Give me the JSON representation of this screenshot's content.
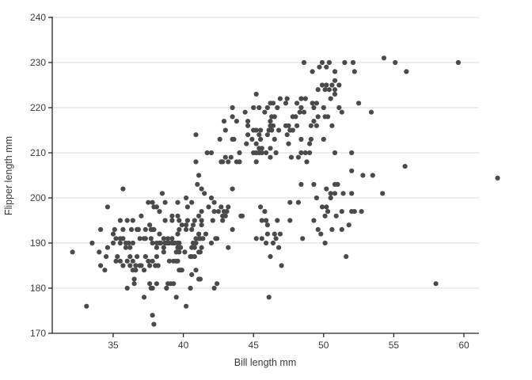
{
  "chart_data": {
    "type": "scatter",
    "title": "",
    "xlabel": "Bill length mm",
    "ylabel": "Flipper length mm",
    "xlim": [
      30.6,
      61.1
    ],
    "ylim": [
      170,
      240
    ],
    "x_ticks": [
      35,
      40,
      45,
      50,
      55,
      60
    ],
    "y_ticks": [
      170,
      180,
      190,
      200,
      210,
      220,
      230,
      240
    ],
    "grid": "horizontal-only",
    "legend": "none",
    "points": [
      [
        37.9,
        172
      ],
      [
        37.8,
        174
      ],
      [
        33.1,
        176
      ],
      [
        40.2,
        176
      ],
      [
        37.2,
        178
      ],
      [
        39.5,
        178
      ],
      [
        46.1,
        178
      ],
      [
        36.0,
        180
      ],
      [
        37.7,
        180
      ],
      [
        37.8,
        180
      ],
      [
        38.8,
        180
      ],
      [
        40.5,
        180
      ],
      [
        42.2,
        180
      ],
      [
        36.5,
        181
      ],
      [
        37.6,
        181
      ],
      [
        38.1,
        181
      ],
      [
        38.9,
        181
      ],
      [
        39.1,
        181
      ],
      [
        39.3,
        181
      ],
      [
        42.4,
        181
      ],
      [
        58.0,
        181
      ],
      [
        36.5,
        182
      ],
      [
        41.1,
        182
      ],
      [
        41.2,
        182
      ],
      [
        40.6,
        183
      ],
      [
        34.4,
        184
      ],
      [
        36.4,
        184
      ],
      [
        36.6,
        184
      ],
      [
        37.2,
        184
      ],
      [
        39.7,
        184
      ],
      [
        39.8,
        184
      ],
      [
        39.9,
        184
      ],
      [
        40.9,
        184
      ],
      [
        34.1,
        185
      ],
      [
        35.7,
        185
      ],
      [
        36.2,
        185
      ],
      [
        36.6,
        185
      ],
      [
        36.9,
        185
      ],
      [
        37.0,
        185
      ],
      [
        37.6,
        185
      ],
      [
        38.0,
        185
      ],
      [
        38.2,
        185
      ],
      [
        47.0,
        185
      ],
      [
        35.2,
        186
      ],
      [
        35.5,
        186
      ],
      [
        36.0,
        186
      ],
      [
        36.4,
        186
      ],
      [
        37.5,
        186
      ],
      [
        37.8,
        186
      ],
      [
        39.0,
        186
      ],
      [
        39.3,
        186
      ],
      [
        39.5,
        186
      ],
      [
        39.6,
        186
      ],
      [
        34.5,
        187
      ],
      [
        35.3,
        187
      ],
      [
        36.2,
        187
      ],
      [
        36.7,
        187
      ],
      [
        37.3,
        187
      ],
      [
        38.1,
        187
      ],
      [
        40.5,
        187
      ],
      [
        40.6,
        187
      ],
      [
        40.8,
        187
      ],
      [
        46.2,
        187
      ],
      [
        51.6,
        187
      ],
      [
        32.1,
        188
      ],
      [
        34.0,
        188
      ],
      [
        38.6,
        188
      ],
      [
        39.5,
        188
      ],
      [
        39.7,
        188
      ],
      [
        40.1,
        188
      ],
      [
        41.1,
        188
      ],
      [
        41.2,
        188
      ],
      [
        34.6,
        189
      ],
      [
        35.9,
        189
      ],
      [
        36.2,
        189
      ],
      [
        38.1,
        189
      ],
      [
        38.6,
        189
      ],
      [
        39.6,
        189
      ],
      [
        39.8,
        189
      ],
      [
        40.6,
        189
      ],
      [
        40.8,
        189
      ],
      [
        41.3,
        189
      ],
      [
        43.2,
        189
      ],
      [
        46.8,
        189
      ],
      [
        33.5,
        190
      ],
      [
        35.0,
        190
      ],
      [
        35.5,
        190
      ],
      [
        35.9,
        190
      ],
      [
        36.1,
        190
      ],
      [
        36.4,
        190
      ],
      [
        37.8,
        190
      ],
      [
        38.1,
        190
      ],
      [
        38.3,
        190
      ],
      [
        38.4,
        190
      ],
      [
        38.7,
        190
      ],
      [
        38.8,
        190
      ],
      [
        38.9,
        190
      ],
      [
        39.0,
        190
      ],
      [
        39.2,
        190
      ],
      [
        39.3,
        190
      ],
      [
        39.4,
        190
      ],
      [
        39.6,
        190
      ],
      [
        39.7,
        190
      ],
      [
        40.7,
        190
      ],
      [
        40.9,
        190
      ],
      [
        42.0,
        190
      ],
      [
        45.9,
        190
      ],
      [
        46.4,
        190
      ],
      [
        50.1,
        190
      ],
      [
        35.2,
        191
      ],
      [
        35.5,
        191
      ],
      [
        35.7,
        191
      ],
      [
        36.9,
        191
      ],
      [
        37.2,
        191
      ],
      [
        37.3,
        191
      ],
      [
        37.7,
        191
      ],
      [
        38.6,
        191
      ],
      [
        38.9,
        191
      ],
      [
        39.2,
        191
      ],
      [
        40.9,
        191
      ],
      [
        41.1,
        191
      ],
      [
        41.2,
        191
      ],
      [
        41.4,
        191
      ],
      [
        42.3,
        191
      ],
      [
        42.4,
        191
      ],
      [
        45.2,
        191
      ],
      [
        45.6,
        191
      ],
      [
        46.6,
        191
      ],
      [
        48.5,
        191
      ],
      [
        35.0,
        192
      ],
      [
        38.3,
        192
      ],
      [
        39.6,
        192
      ],
      [
        41.1,
        192
      ],
      [
        41.6,
        192
      ],
      [
        46.0,
        192
      ],
      [
        46.5,
        192
      ],
      [
        46.9,
        192
      ],
      [
        49.8,
        192
      ],
      [
        34.1,
        193
      ],
      [
        35.1,
        193
      ],
      [
        35.7,
        193
      ],
      [
        36.3,
        193
      ],
      [
        36.7,
        193
      ],
      [
        36.8,
        193
      ],
      [
        37.3,
        193
      ],
      [
        37.7,
        193
      ],
      [
        37.8,
        193
      ],
      [
        37.9,
        193
      ],
      [
        39.7,
        193
      ],
      [
        40.2,
        193
      ],
      [
        40.6,
        193
      ],
      [
        43.5,
        193
      ],
      [
        49.6,
        193
      ],
      [
        50.6,
        193
      ],
      [
        51.3,
        193
      ],
      [
        37.6,
        194
      ],
      [
        39.9,
        194
      ],
      [
        40.2,
        194
      ],
      [
        40.7,
        194
      ],
      [
        41.3,
        194
      ],
      [
        46.0,
        194
      ],
      [
        51.8,
        194
      ],
      [
        35.5,
        195
      ],
      [
        36.0,
        195
      ],
      [
        36.4,
        195
      ],
      [
        38.7,
        195
      ],
      [
        39.2,
        195
      ],
      [
        39.7,
        195
      ],
      [
        40.3,
        195
      ],
      [
        40.8,
        195
      ],
      [
        41.3,
        195
      ],
      [
        42.1,
        195
      ],
      [
        42.8,
        195
      ],
      [
        45.6,
        195
      ],
      [
        45.9,
        195
      ],
      [
        46.7,
        195
      ],
      [
        47.6,
        195
      ],
      [
        49.3,
        195
      ],
      [
        37.0,
        196
      ],
      [
        39.2,
        196
      ],
      [
        39.6,
        196
      ],
      [
        41.1,
        196
      ],
      [
        42.8,
        196
      ],
      [
        43.0,
        196
      ],
      [
        44.1,
        196
      ],
      [
        44.2,
        196
      ],
      [
        50.1,
        196
      ],
      [
        50.9,
        196
      ],
      [
        38.3,
        197
      ],
      [
        41.3,
        197
      ],
      [
        42.2,
        197
      ],
      [
        42.5,
        197
      ],
      [
        42.9,
        197
      ],
      [
        43.1,
        197
      ],
      [
        45.8,
        197
      ],
      [
        50.3,
        197
      ],
      [
        51.3,
        197
      ],
      [
        52.0,
        197
      ],
      [
        52.2,
        197
      ],
      [
        52.7,
        197
      ],
      [
        34.6,
        198
      ],
      [
        37.9,
        198
      ],
      [
        38.1,
        198
      ],
      [
        40.3,
        198
      ],
      [
        41.8,
        198
      ],
      [
        42.7,
        198
      ],
      [
        43.2,
        198
      ],
      [
        45.5,
        198
      ],
      [
        49.9,
        198
      ],
      [
        50.2,
        198
      ],
      [
        37.5,
        199
      ],
      [
        37.8,
        199
      ],
      [
        38.7,
        199
      ],
      [
        39.6,
        199
      ],
      [
        40.6,
        199
      ],
      [
        42.2,
        199
      ],
      [
        47.6,
        199
      ],
      [
        48.2,
        199
      ],
      [
        40.2,
        200
      ],
      [
        42.0,
        200
      ],
      [
        49.5,
        200
      ],
      [
        50.5,
        200
      ],
      [
        38.5,
        201
      ],
      [
        41.5,
        201
      ],
      [
        50.5,
        201
      ],
      [
        50.8,
        201
      ],
      [
        51.4,
        201
      ],
      [
        52.0,
        201
      ],
      [
        54.2,
        201
      ],
      [
        35.7,
        202
      ],
      [
        41.3,
        202
      ],
      [
        43.5,
        202
      ],
      [
        50.2,
        202
      ],
      [
        41.0,
        203
      ],
      [
        48.4,
        203
      ],
      [
        49.3,
        203
      ],
      [
        50.8,
        203
      ],
      [
        51.0,
        203
      ],
      [
        62.4,
        204.4
      ],
      [
        41.1,
        205
      ],
      [
        52.8,
        205
      ],
      [
        53.5,
        205
      ],
      [
        52.0,
        206
      ],
      [
        55.8,
        207
      ],
      [
        40.9,
        208
      ],
      [
        42.7,
        208
      ],
      [
        42.8,
        208
      ],
      [
        43.2,
        208
      ],
      [
        43.8,
        208
      ],
      [
        44.0,
        208
      ],
      [
        45.2,
        208
      ],
      [
        48.8,
        208
      ],
      [
        43.0,
        209
      ],
      [
        43.4,
        209
      ],
      [
        46.2,
        209
      ],
      [
        47.7,
        209
      ],
      [
        48.2,
        209
      ],
      [
        41.7,
        210
      ],
      [
        42.0,
        210
      ],
      [
        44.0,
        210
      ],
      [
        45.0,
        210
      ],
      [
        45.2,
        210
      ],
      [
        45.4,
        210
      ],
      [
        45.6,
        210
      ],
      [
        45.9,
        210
      ],
      [
        46.6,
        210
      ],
      [
        48.4,
        210
      ],
      [
        48.7,
        210
      ],
      [
        49.0,
        210
      ],
      [
        50.8,
        210
      ],
      [
        52.0,
        210
      ],
      [
        45.4,
        211
      ],
      [
        45.6,
        211
      ],
      [
        46.2,
        211
      ],
      [
        44.5,
        212
      ],
      [
        45.2,
        212
      ],
      [
        47.5,
        212
      ],
      [
        49.0,
        212
      ],
      [
        42.6,
        213
      ],
      [
        43.5,
        213
      ],
      [
        43.6,
        213
      ],
      [
        44.9,
        213
      ],
      [
        45.5,
        213
      ],
      [
        46.5,
        213
      ],
      [
        48.4,
        213
      ],
      [
        49.1,
        213
      ],
      [
        50.0,
        213
      ],
      [
        40.9,
        214
      ],
      [
        44.6,
        214
      ],
      [
        45.4,
        214
      ],
      [
        46.0,
        214
      ],
      [
        47.4,
        214
      ],
      [
        43.0,
        215
      ],
      [
        45.0,
        215
      ],
      [
        45.2,
        215
      ],
      [
        45.5,
        215
      ],
      [
        46.1,
        215
      ],
      [
        46.3,
        215
      ],
      [
        46.8,
        215
      ],
      [
        47.6,
        215
      ],
      [
        47.8,
        215
      ],
      [
        44.6,
        216
      ],
      [
        46.2,
        216
      ],
      [
        46.4,
        216
      ],
      [
        47.3,
        216
      ],
      [
        47.5,
        216
      ],
      [
        48.1,
        216
      ],
      [
        49.1,
        216
      ],
      [
        49.5,
        216
      ],
      [
        50.6,
        216
      ],
      [
        42.9,
        217
      ],
      [
        43.8,
        217
      ],
      [
        44.6,
        217
      ],
      [
        46.2,
        217
      ],
      [
        49.3,
        217
      ],
      [
        43.5,
        218
      ],
      [
        46.3,
        218
      ],
      [
        46.5,
        218
      ],
      [
        47.8,
        218
      ],
      [
        48.0,
        218
      ],
      [
        49.6,
        218
      ],
      [
        50.1,
        218
      ],
      [
        50.3,
        218
      ],
      [
        44.4,
        219
      ],
      [
        45.8,
        219
      ],
      [
        48.3,
        219
      ],
      [
        48.6,
        219
      ],
      [
        51.3,
        219
      ],
      [
        53.4,
        219
      ],
      [
        43.5,
        220
      ],
      [
        45.0,
        220
      ],
      [
        45.4,
        220
      ],
      [
        46.0,
        220
      ],
      [
        46.7,
        220
      ],
      [
        48.4,
        220
      ],
      [
        49.3,
        220
      ],
      [
        50.0,
        220
      ],
      [
        51.1,
        220
      ],
      [
        46.2,
        221
      ],
      [
        46.4,
        221
      ],
      [
        47.3,
        221
      ],
      [
        48.1,
        221
      ],
      [
        49.2,
        221
      ],
      [
        49.5,
        221
      ],
      [
        52.5,
        221
      ],
      [
        46.9,
        222
      ],
      [
        47.4,
        222
      ],
      [
        48.4,
        222
      ],
      [
        48.7,
        222
      ],
      [
        50.5,
        222
      ],
      [
        45.2,
        223
      ],
      [
        50.8,
        223
      ],
      [
        49.6,
        224
      ],
      [
        50.1,
        224
      ],
      [
        50.4,
        224
      ],
      [
        50.8,
        224
      ],
      [
        49.9,
        225
      ],
      [
        50.2,
        225
      ],
      [
        50.6,
        225
      ],
      [
        51.1,
        225
      ],
      [
        50.8,
        226
      ],
      [
        49.2,
        228
      ],
      [
        50.8,
        228
      ],
      [
        52.2,
        228
      ],
      [
        55.9,
        228
      ],
      [
        49.7,
        229
      ],
      [
        50.2,
        229
      ],
      [
        48.6,
        230
      ],
      [
        49.9,
        230
      ],
      [
        50.4,
        230
      ],
      [
        51.5,
        230
      ],
      [
        52.1,
        230
      ],
      [
        55.1,
        230
      ],
      [
        59.6,
        230
      ],
      [
        54.3,
        231
      ]
    ]
  },
  "colors": {
    "background": "#ffffff",
    "point": "#4a4a4a",
    "gridline": "#d9d9d9",
    "axis": "#262626",
    "tick_label": "#3a3a3a",
    "axis_title": "#3a3a3a"
  }
}
